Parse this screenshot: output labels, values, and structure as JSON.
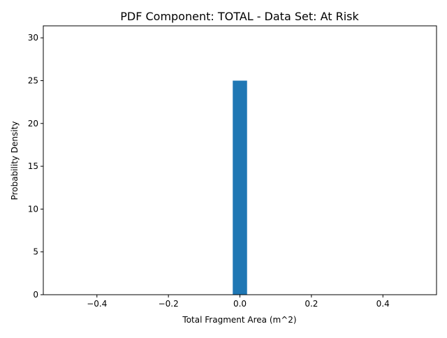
{
  "chart_data": {
    "type": "bar",
    "title": "PDF Component: TOTAL - Data Set: At Risk",
    "xlabel": "Total Fragment Area (m^2)",
    "ylabel": "Probability Density",
    "xlim": [
      -0.55,
      0.55
    ],
    "ylim": [
      0,
      31.4
    ],
    "xticks": [
      -0.4,
      -0.2,
      0.0,
      0.2,
      0.4
    ],
    "xtick_labels": [
      "−0.4",
      "−0.2",
      "0.0",
      "0.2",
      "0.4"
    ],
    "yticks": [
      0,
      5,
      10,
      15,
      20,
      25,
      30
    ],
    "ytick_labels": [
      "0",
      "5",
      "10",
      "15",
      "20",
      "25",
      "30"
    ],
    "bars": [
      {
        "x_left": -0.02,
        "x_right": 0.02,
        "value": 25
      }
    ],
    "bar_color": "#1f77b4",
    "grid": false,
    "legend": "none"
  }
}
